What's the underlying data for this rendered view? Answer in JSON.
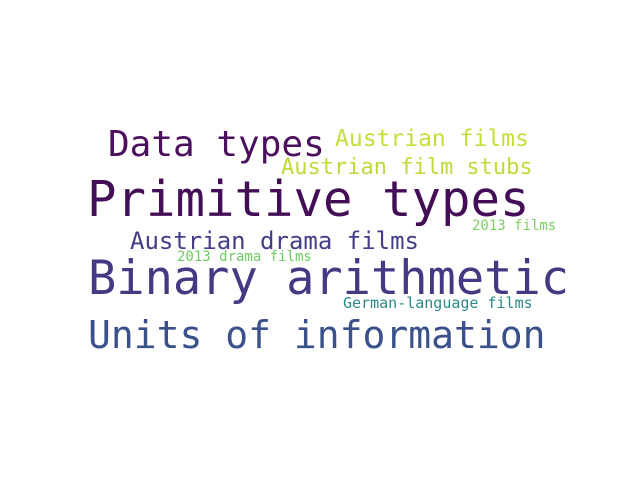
{
  "words": [
    {
      "text": "Data types",
      "color": "#4b0f5d"
    },
    {
      "text": "Austrian films",
      "color": "#c7dd3a"
    },
    {
      "text": "Austrian film stubs",
      "color": "#bcdc3c"
    },
    {
      "text": "Primitive types",
      "color": "#440e57"
    },
    {
      "text": "Austrian drama films",
      "color": "#433e87"
    },
    {
      "text": "2013 films",
      "color": "#7bd05e"
    },
    {
      "text": "2013 drama films",
      "color": "#6ece61"
    },
    {
      "text": "Binary arithmetic",
      "color": "#443a83"
    },
    {
      "text": "German-language films",
      "color": "#2a8a8a"
    },
    {
      "text": "Units of information",
      "color": "#3b518b"
    }
  ]
}
